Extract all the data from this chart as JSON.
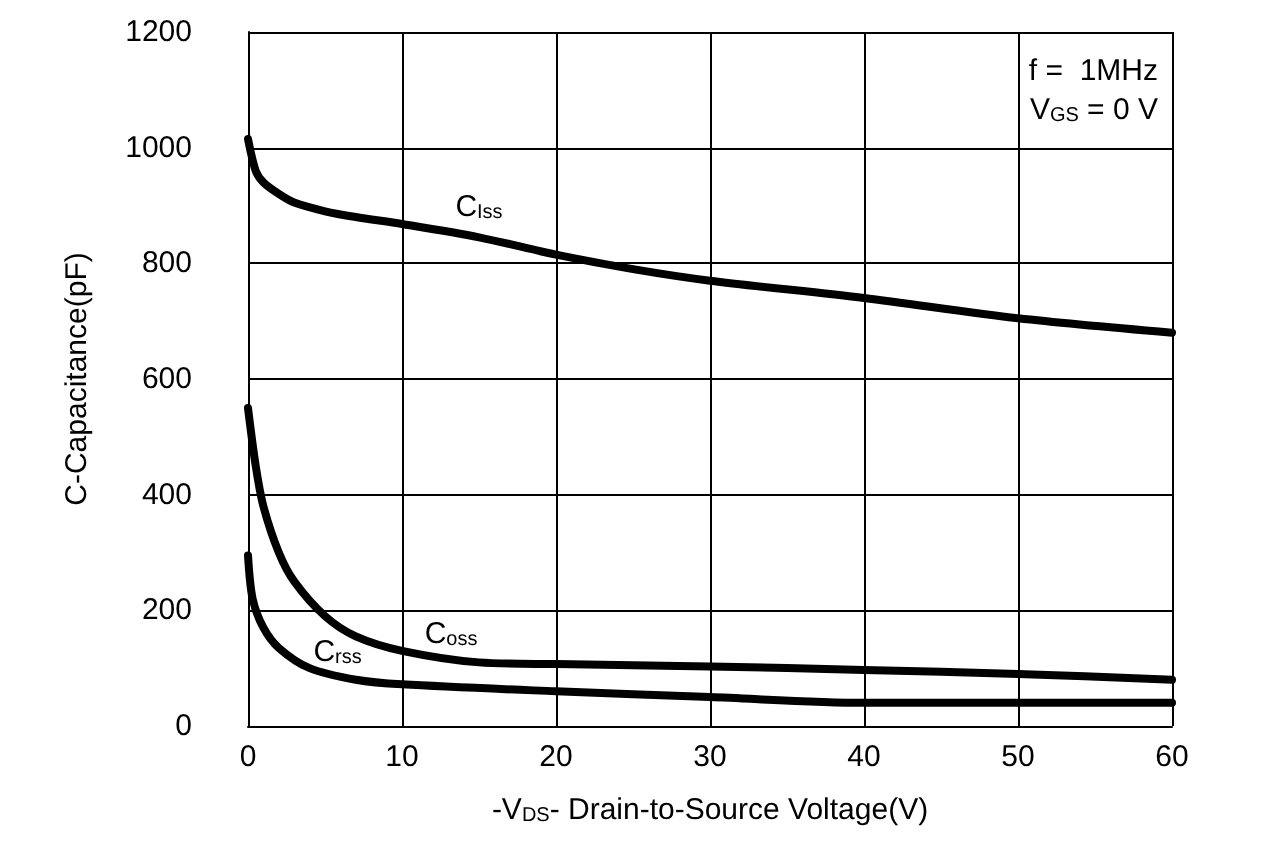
{
  "chart_data": {
    "type": "line",
    "xlabel": "-V$_{DS}$- Drain-to-Source Voltage(V)",
    "ylabel": "C-Capacitance(pF)",
    "xlim": [
      0,
      60
    ],
    "xticks": [
      0,
      10,
      20,
      30,
      40,
      50,
      60
    ],
    "ylim": [
      0,
      1200
    ],
    "yticks": [
      0,
      200,
      400,
      600,
      800,
      1000,
      1200
    ],
    "grid": true,
    "marker": "none",
    "line_style": "solid",
    "annotations": [
      "f =  1MHz",
      "V$_{GS}$ = 0 V"
    ],
    "series": [
      {
        "name": "C$_{Iss}$",
        "color": "#000000",
        "x": [
          0,
          0.5,
          1,
          2,
          3,
          5,
          7,
          10,
          15,
          20,
          25,
          30,
          40,
          50,
          60
        ],
        "values": [
          1015,
          960,
          940,
          920,
          905,
          890,
          880,
          868,
          845,
          815,
          790,
          770,
          740,
          705,
          680
        ]
      },
      {
        "name": "C$_{oss}$",
        "color": "#000000",
        "x": [
          0,
          0.5,
          1,
          2,
          3,
          5,
          7,
          10,
          15,
          20,
          30,
          40,
          50,
          60
        ],
        "values": [
          550,
          450,
          380,
          300,
          250,
          190,
          155,
          130,
          110,
          107,
          103,
          97,
          90,
          80
        ]
      },
      {
        "name": "C$_{rss}$",
        "color": "#000000",
        "x": [
          0,
          0.3,
          1,
          2,
          4,
          7,
          10,
          20,
          30,
          40,
          50,
          60
        ],
        "values": [
          295,
          220,
          170,
          135,
          100,
          80,
          72,
          60,
          50,
          40,
          40,
          40
        ]
      }
    ]
  }
}
